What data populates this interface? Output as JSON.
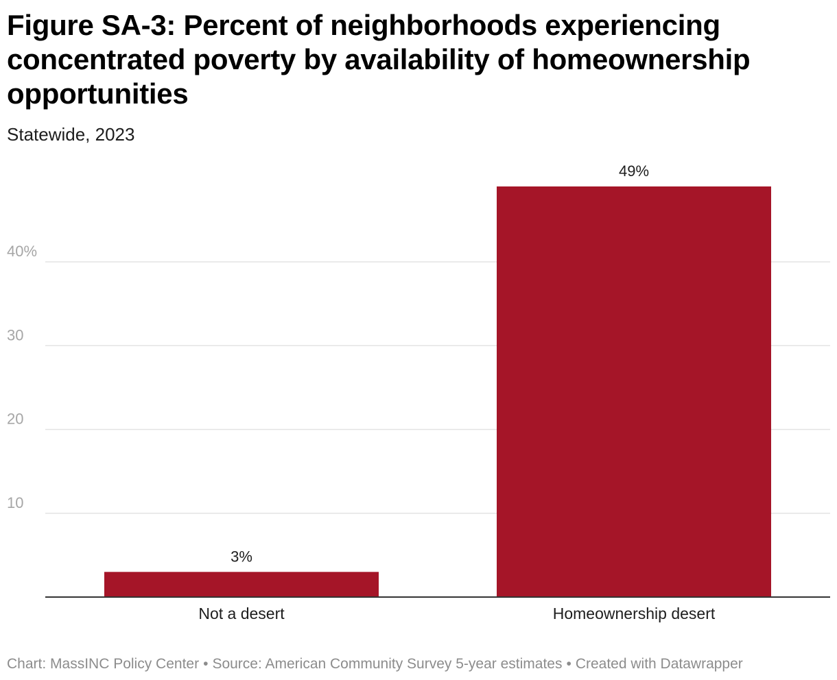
{
  "header": {
    "title": "Figure SA-3: Percent of neighborhoods experiencing concentrated poverty by availability of homeownership opportunities",
    "subtitle": "Statewide, 2023"
  },
  "footer": {
    "chart_credit": "Chart: MassINC Policy Center",
    "source": "Source: American Community Survey 5-year estimates",
    "created_with": "Created with Datawrapper",
    "separator": "•"
  },
  "colors": {
    "bar": "#a51528",
    "grid": "#e3e3e3",
    "axis": "#333333",
    "tick_text": "#a6a6a6",
    "label_text": "#1d1d1d"
  },
  "chart_data": {
    "type": "bar",
    "title": "Figure SA-3: Percent of neighborhoods experiencing concentrated poverty by availability of homeownership opportunities",
    "subtitle": "Statewide, 2023",
    "categories": [
      "Not a desert",
      "Homeownership desert"
    ],
    "values": [
      3,
      49
    ],
    "value_labels": [
      "3%",
      "49%"
    ],
    "ylim": [
      0,
      49
    ],
    "yticks": [
      10,
      20,
      30,
      40
    ],
    "ytick_labels": [
      "10",
      "20",
      "30",
      "40%"
    ],
    "xlabel": "",
    "ylabel": "",
    "grid": true,
    "legend": "none"
  }
}
